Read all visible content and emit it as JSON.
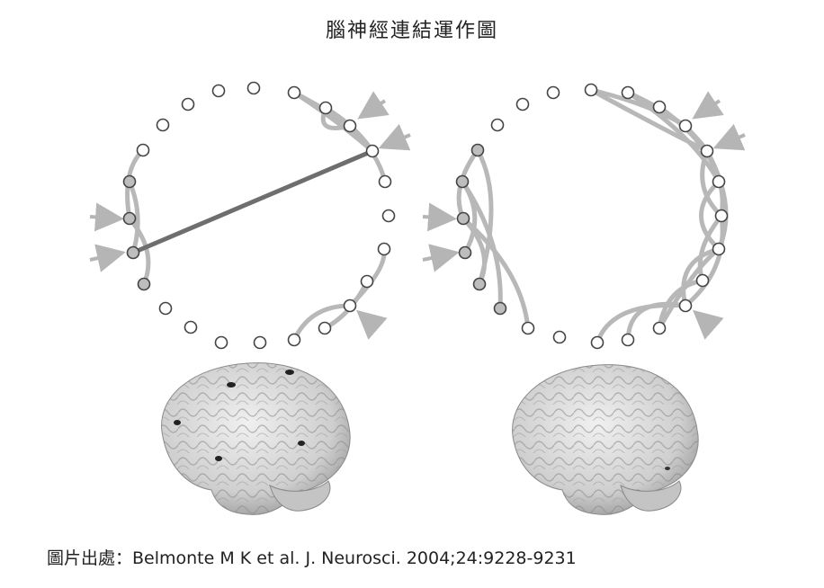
{
  "title": "腦神經連結運作圖",
  "caption": "圖片出處：Belmonte M K et al. J. Neurosci. 2004;24:9228-9231",
  "colors": {
    "node_fill": "#ffffff",
    "node_stroke": "#444444",
    "node_gray": "#bdbdbd",
    "arc": "#b8b8b8",
    "long_link": "#6e6e6e",
    "arrow": "#b5b5b5",
    "brain": "#d6d6d6"
  },
  "panels": [
    {
      "name": "left-panel",
      "long_range_link": true
    },
    {
      "name": "right-panel",
      "long_range_link": false
    }
  ]
}
